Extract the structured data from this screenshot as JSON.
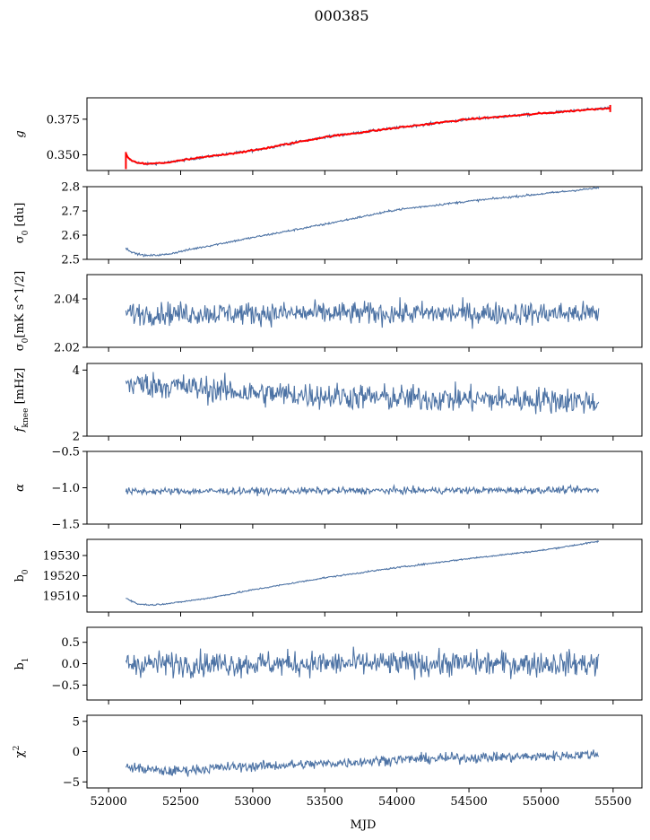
{
  "figure": {
    "title": "000385",
    "xlabel": "MJD"
  },
  "colors": {
    "series": "#4c72a4",
    "fit": "#ff0000",
    "axis": "#000000"
  },
  "x_axis": {
    "range": [
      51850,
      55700
    ],
    "ticks": [
      52000,
      52500,
      53000,
      53500,
      54000,
      54500,
      55000,
      55500
    ]
  },
  "chart_data": [
    {
      "id": "g",
      "type": "line",
      "ylabel": "g",
      "ylim": [
        0.339,
        0.39
      ],
      "yticks": [
        0.35,
        0.375
      ],
      "yticklabels": [
        "0.350",
        "0.375"
      ],
      "x_range": [
        52120,
        55480
      ],
      "has_fit_overlay": true,
      "series": [
        {
          "name": "",
          "anchors": [
            [
              52120,
              0.351
            ],
            [
              52140,
              0.347
            ],
            [
              52180,
              0.345
            ],
            [
              52260,
              0.3435
            ],
            [
              52400,
              0.3445
            ],
            [
              52600,
              0.3475
            ],
            [
              53000,
              0.353
            ],
            [
              53500,
              0.3625
            ],
            [
              54000,
              0.369
            ],
            [
              54500,
              0.375
            ],
            [
              55000,
              0.379
            ],
            [
              55300,
              0.3815
            ],
            [
              55480,
              0.383
            ]
          ],
          "noise": 0.0009
        }
      ]
    },
    {
      "id": "sigma0_du",
      "type": "line",
      "ylabel": "σ0 [du]",
      "ylim": [
        2.5,
        2.8
      ],
      "yticks": [
        2.5,
        2.6,
        2.7,
        2.8
      ],
      "yticklabels": [
        "2.5",
        "2.6",
        "2.7",
        "2.8"
      ],
      "x_range": [
        52120,
        55400
      ],
      "series": [
        {
          "name": "",
          "anchors": [
            [
              52120,
              2.545
            ],
            [
              52180,
              2.525
            ],
            [
              52260,
              2.515
            ],
            [
              52400,
              2.52
            ],
            [
              52600,
              2.545
            ],
            [
              53000,
              2.59
            ],
            [
              53500,
              2.645
            ],
            [
              54000,
              2.705
            ],
            [
              54500,
              2.74
            ],
            [
              55000,
              2.77
            ],
            [
              55400,
              2.795
            ]
          ],
          "noise": 0.004
        }
      ]
    },
    {
      "id": "sigma0_mk",
      "type": "line",
      "ylabel": "σ0[mK s^1/2]",
      "ylim": [
        2.02,
        2.05
      ],
      "yticks": [
        2.02,
        2.04
      ],
      "yticklabels": [
        "2.02",
        "2.04"
      ],
      "x_range": [
        52120,
        55400
      ],
      "series": [
        {
          "name": "",
          "anchors": [
            [
              52120,
              2.034
            ],
            [
              55400,
              2.034
            ]
          ],
          "noise": 0.0045
        }
      ]
    },
    {
      "id": "fknee",
      "type": "line",
      "ylabel": "fknee [mHz]",
      "ylim": [
        2,
        4.2
      ],
      "yticks": [
        2,
        4
      ],
      "yticklabels": [
        "2",
        "4"
      ],
      "x_range": [
        52120,
        55400
      ],
      "series": [
        {
          "name": "",
          "anchors": [
            [
              52120,
              3.6
            ],
            [
              52500,
              3.5
            ],
            [
              53000,
              3.3
            ],
            [
              54000,
              3.15
            ],
            [
              55000,
              3.1
            ],
            [
              55400,
              3.05
            ]
          ],
          "noise": 0.38
        }
      ]
    },
    {
      "id": "alpha",
      "type": "line",
      "ylabel": "α",
      "ylim": [
        -1.5,
        -0.5
      ],
      "yticks": [
        -1.5,
        -1.0,
        -0.5
      ],
      "yticklabels": [
        "−1.5",
        "−1.0",
        "−0.5"
      ],
      "x_range": [
        52120,
        55400
      ],
      "series": [
        {
          "name": "",
          "anchors": [
            [
              52120,
              -1.05
            ],
            [
              55400,
              -1.03
            ]
          ],
          "noise": 0.045
        }
      ]
    },
    {
      "id": "b0",
      "type": "line",
      "ylabel": "b0",
      "ylim": [
        19502,
        19538
      ],
      "yticks": [
        19510,
        19520,
        19530
      ],
      "yticklabels": [
        "19510",
        "19520",
        "19530"
      ],
      "x_range": [
        52120,
        55400
      ],
      "series": [
        {
          "name": "",
          "anchors": [
            [
              52120,
              19509
            ],
            [
              52200,
              19506
            ],
            [
              52300,
              19505.5
            ],
            [
              52450,
              19506.5
            ],
            [
              52700,
              19509
            ],
            [
              53000,
              19513
            ],
            [
              53500,
              19519
            ],
            [
              54000,
              19524
            ],
            [
              54500,
              19528.5
            ],
            [
              55000,
              19532.5
            ],
            [
              55400,
              19537
            ]
          ],
          "noise": 0.35
        }
      ]
    },
    {
      "id": "b1",
      "type": "line",
      "ylabel": "b1",
      "ylim": [
        -0.85,
        0.85
      ],
      "yticks": [
        -0.5,
        0.0,
        0.5
      ],
      "yticklabels": [
        "−0.5",
        "0.0",
        "0.5"
      ],
      "x_range": [
        52120,
        55400
      ],
      "series": [
        {
          "name": "",
          "anchors": [
            [
              52120,
              0.0
            ],
            [
              55400,
              0.0
            ]
          ],
          "noise": 0.28
        }
      ]
    },
    {
      "id": "chi2",
      "type": "line",
      "ylabel": "χ^2",
      "ylim": [
        -6,
        6
      ],
      "yticks": [
        -5,
        0,
        5
      ],
      "yticklabels": [
        "−5",
        "0",
        "5"
      ],
      "x_range": [
        52120,
        55400
      ],
      "series": [
        {
          "name": "",
          "anchors": [
            [
              52120,
              -2.5
            ],
            [
              52400,
              -3.3
            ],
            [
              52800,
              -2.6
            ],
            [
              53500,
              -2.0
            ],
            [
              54000,
              -1.3
            ],
            [
              54500,
              -1.0
            ],
            [
              55000,
              -0.8
            ],
            [
              55400,
              -0.4
            ]
          ],
          "noise": 0.8
        }
      ]
    }
  ]
}
